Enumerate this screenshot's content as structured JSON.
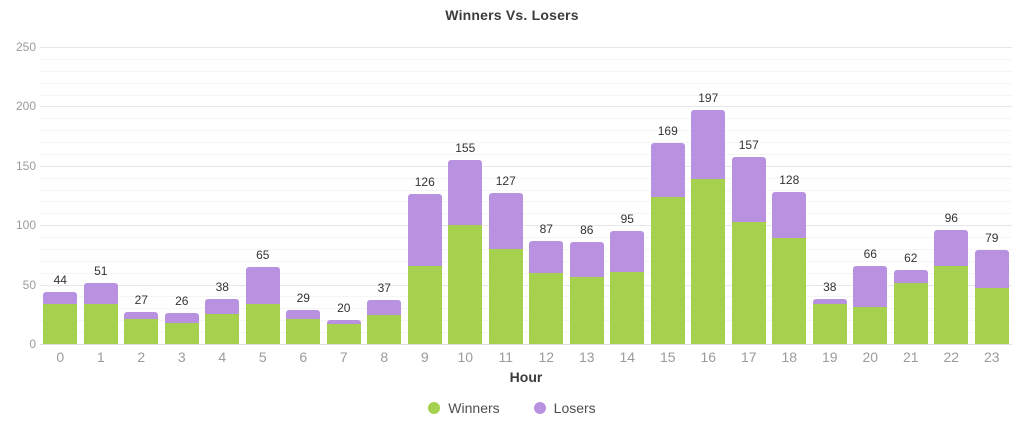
{
  "chart_data": {
    "type": "bar",
    "stacked": true,
    "title": "Winners Vs. Losers",
    "xlabel": "Hour",
    "ylabel": "",
    "categories": [
      "0",
      "1",
      "2",
      "3",
      "4",
      "5",
      "6",
      "7",
      "8",
      "9",
      "10",
      "11",
      "12",
      "13",
      "14",
      "15",
      "16",
      "17",
      "18",
      "19",
      "20",
      "21",
      "22",
      "23"
    ],
    "series": [
      {
        "name": "Winners",
        "color": "#a6d14f",
        "values": [
          34,
          34,
          21,
          18,
          25,
          34,
          21,
          17,
          24,
          66,
          100,
          80,
          60,
          56,
          61,
          124,
          139,
          103,
          89,
          34,
          31,
          51,
          66,
          47
        ]
      },
      {
        "name": "Losers",
        "color": "#b892e0",
        "values": [
          10,
          17,
          6,
          8,
          13,
          31,
          8,
          3,
          13,
          60,
          55,
          47,
          27,
          30,
          34,
          45,
          58,
          54,
          39,
          4,
          35,
          11,
          30,
          32
        ]
      }
    ],
    "totals": [
      44,
      51,
      27,
      26,
      38,
      65,
      29,
      20,
      37,
      126,
      155,
      127,
      87,
      86,
      95,
      169,
      197,
      157,
      128,
      38,
      66,
      62,
      96,
      79
    ],
    "yticks": [
      0,
      50,
      100,
      150,
      200,
      250
    ],
    "ylim": [
      0,
      250
    ],
    "minor_grid_step": 10,
    "grid": "on",
    "legend_position": "bottom",
    "colors": {
      "winners": "#a6d14f",
      "losers": "#b892e0",
      "title_text": "#3c3c3c",
      "axis_text": "#9b9b9b",
      "data_label_text": "#333333",
      "legend_text": "#4f4f4f",
      "major_gridline": "#e7e7e7",
      "minor_gridline": "#f5f5f5"
    }
  }
}
